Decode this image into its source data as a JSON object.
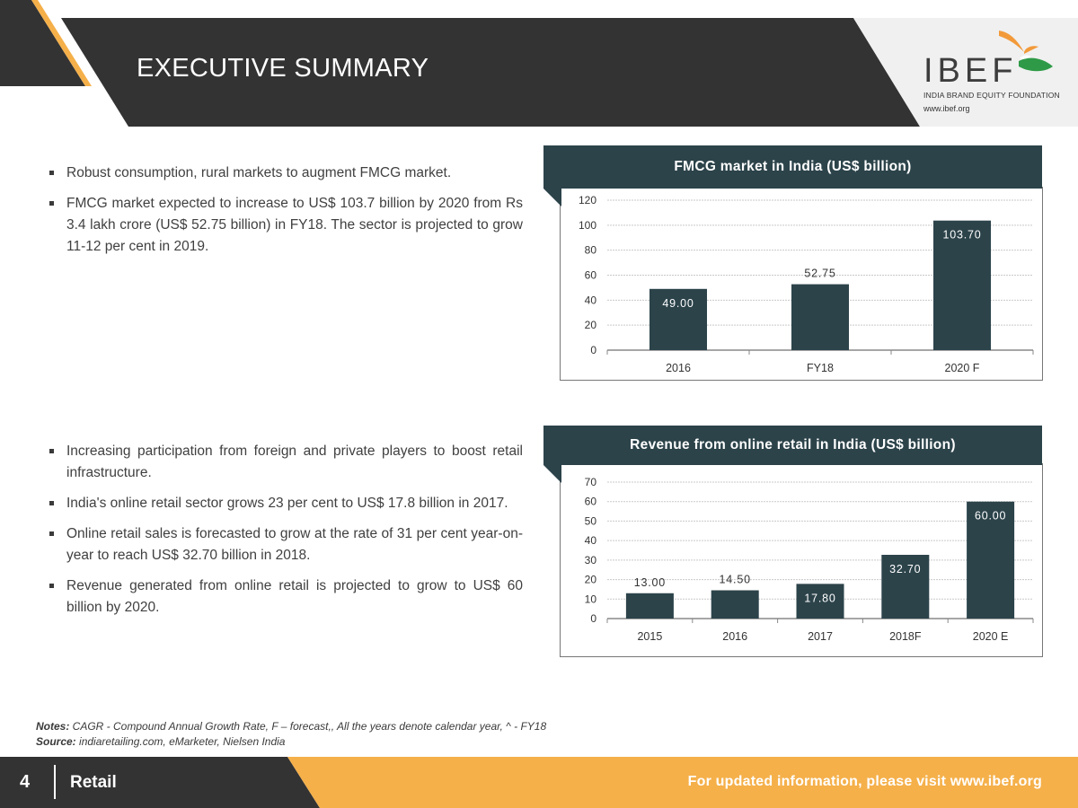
{
  "header": {
    "title": "EXECUTIVE SUMMARY"
  },
  "logo": {
    "name": "IBEF",
    "subtitle": "INDIA BRAND EQUITY FOUNDATION",
    "url": "www.ibef.org",
    "colors": {
      "orange": "#f29a3a",
      "green": "#2e9a47",
      "text": "#3d3d3d"
    }
  },
  "section1": {
    "bullets": [
      "Robust consumption, rural markets to augment FMCG market.",
      "FMCG market expected to increase to US$ 103.7 billion by 2020 from Rs 3.4 lakh crore (US$ 52.75 billion) in FY18. The sector is projected to grow 11-12 per cent in 2019."
    ]
  },
  "section2": {
    "bullets": [
      "Increasing participation from foreign and private players to boost retail infrastructure.",
      "India's online retail sector grows 23 per cent to US$ 17.8 billion in 2017.",
      "Online retail sales is forecasted to grow at the rate of 31 per cent year-on-year to reach US$ 32.70 billion in 2018.",
      "Revenue generated from online retail is projected to grow to US$ 60 billion by 2020."
    ]
  },
  "chart_data": [
    {
      "type": "bar",
      "title": "FMCG market in India (US$ billion)",
      "categories": [
        "2016",
        "FY18",
        "2020 F"
      ],
      "values": [
        49.0,
        52.75,
        103.7
      ],
      "data_labels": [
        "49.00",
        "52.75",
        "103.70"
      ],
      "label_inside": [
        true,
        false,
        true
      ],
      "yticks": [
        "0",
        "20",
        "40",
        "60",
        "80",
        "100",
        "120"
      ],
      "ylim": [
        0,
        120
      ],
      "xlabel": "",
      "ylabel": "",
      "bar_color": "#2c434a",
      "grid": true
    },
    {
      "type": "bar",
      "title": "Revenue from online retail in India (US$ billion)",
      "categories": [
        "2015",
        "2016",
        "2017",
        "2018F",
        "2020 E"
      ],
      "values": [
        13.0,
        14.5,
        17.8,
        32.7,
        60.0
      ],
      "data_labels": [
        "13.00",
        "14.50",
        "17.80",
        "32.70",
        "60.00"
      ],
      "label_inside": [
        false,
        false,
        true,
        true,
        true
      ],
      "yticks": [
        "0",
        "10",
        "20",
        "30",
        "40",
        "50",
        "60",
        "70"
      ],
      "ylim": [
        0,
        70
      ],
      "xlabel": "",
      "ylabel": "",
      "bar_color": "#2c434a",
      "grid": true
    }
  ],
  "notes": {
    "notes_label": "Notes:",
    "notes_text": " CAGR - Compound Annual Growth Rate, F – forecast,, All the years denote calendar year, ^ - FY18",
    "source_label": "Source:",
    "source_text": " indiaretailing.com, eMarketer, Nielsen India"
  },
  "footer": {
    "page_number": "4",
    "section": "Retail",
    "link_text": "For updated information, please visit www.ibef.org"
  }
}
